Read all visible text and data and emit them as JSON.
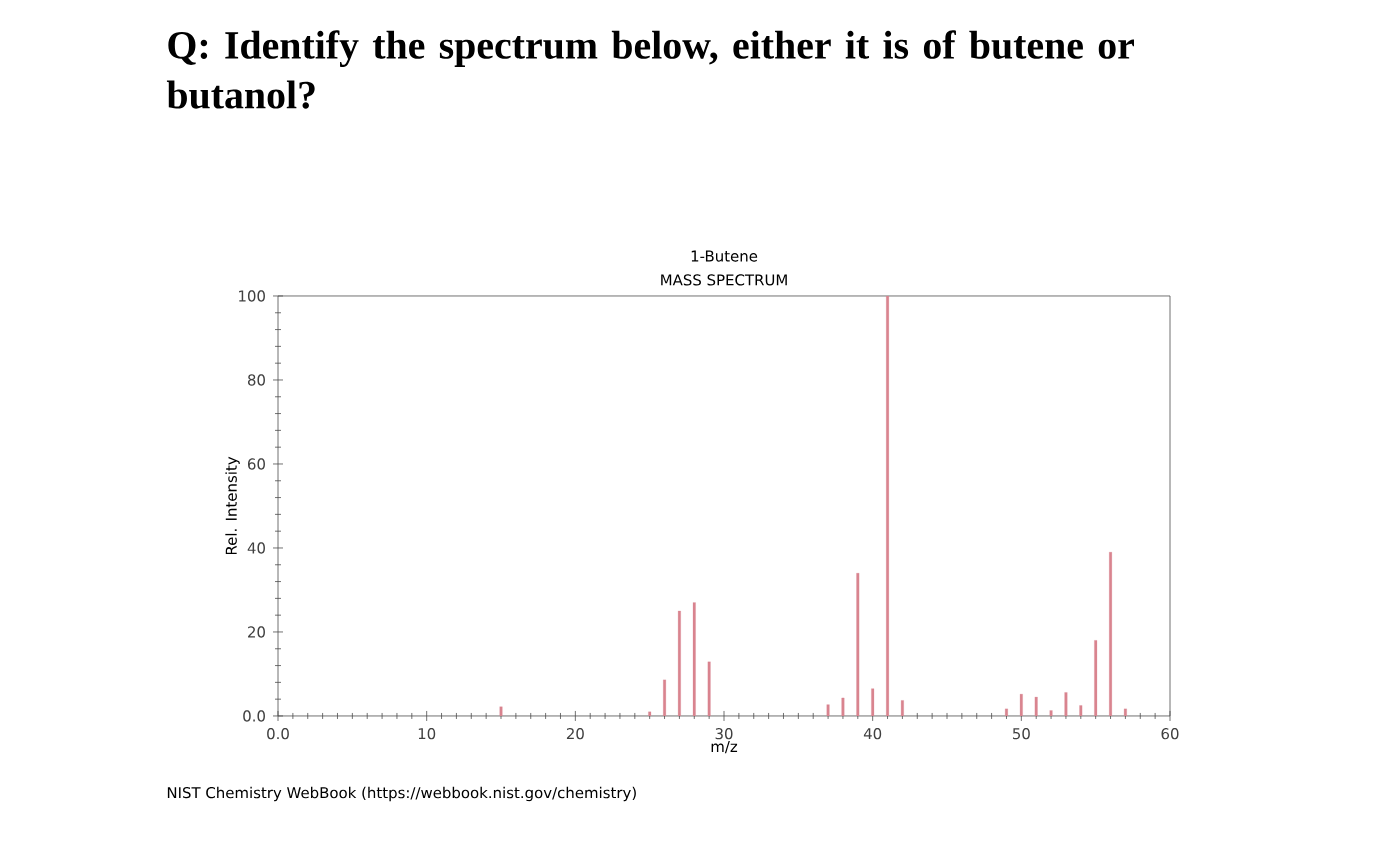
{
  "chart_data": {
    "type": "bar",
    "title": "Q: Identify the spectrum below, either it is of butene or butanol?",
    "subtitle": "1-Butene",
    "annotations": [
      "MASS SPECTRUM",
      "NIST Chemistry WebBook (https://webbook.nist.gov/chemistry)"
    ],
    "xlabel": "m/z",
    "ylabel": "Rel. Intensity",
    "x": [
      15,
      25,
      26,
      27,
      28,
      29,
      37,
      38,
      39,
      40,
      41,
      42,
      49,
      50,
      51,
      52,
      53,
      54,
      55,
      56,
      57
    ],
    "values": [
      2.2,
      1,
      8.6,
      25,
      27,
      12.9,
      2.7,
      4.3,
      34,
      6.5,
      100,
      3.7,
      1.7,
      5.2,
      4.5,
      1.3,
      5.6,
      2.5,
      18,
      39,
      1.7
    ],
    "color": "#d9848f",
    "xlim": [
      0,
      60
    ],
    "ylim": [
      0,
      100
    ],
    "xticks": [
      {
        "value": 0,
        "label": "0.0"
      },
      10,
      20,
      30,
      40,
      50,
      60
    ],
    "yticks": [
      {
        "value": 0,
        "label": "0.0"
      },
      20,
      40,
      60,
      80,
      100
    ]
  }
}
